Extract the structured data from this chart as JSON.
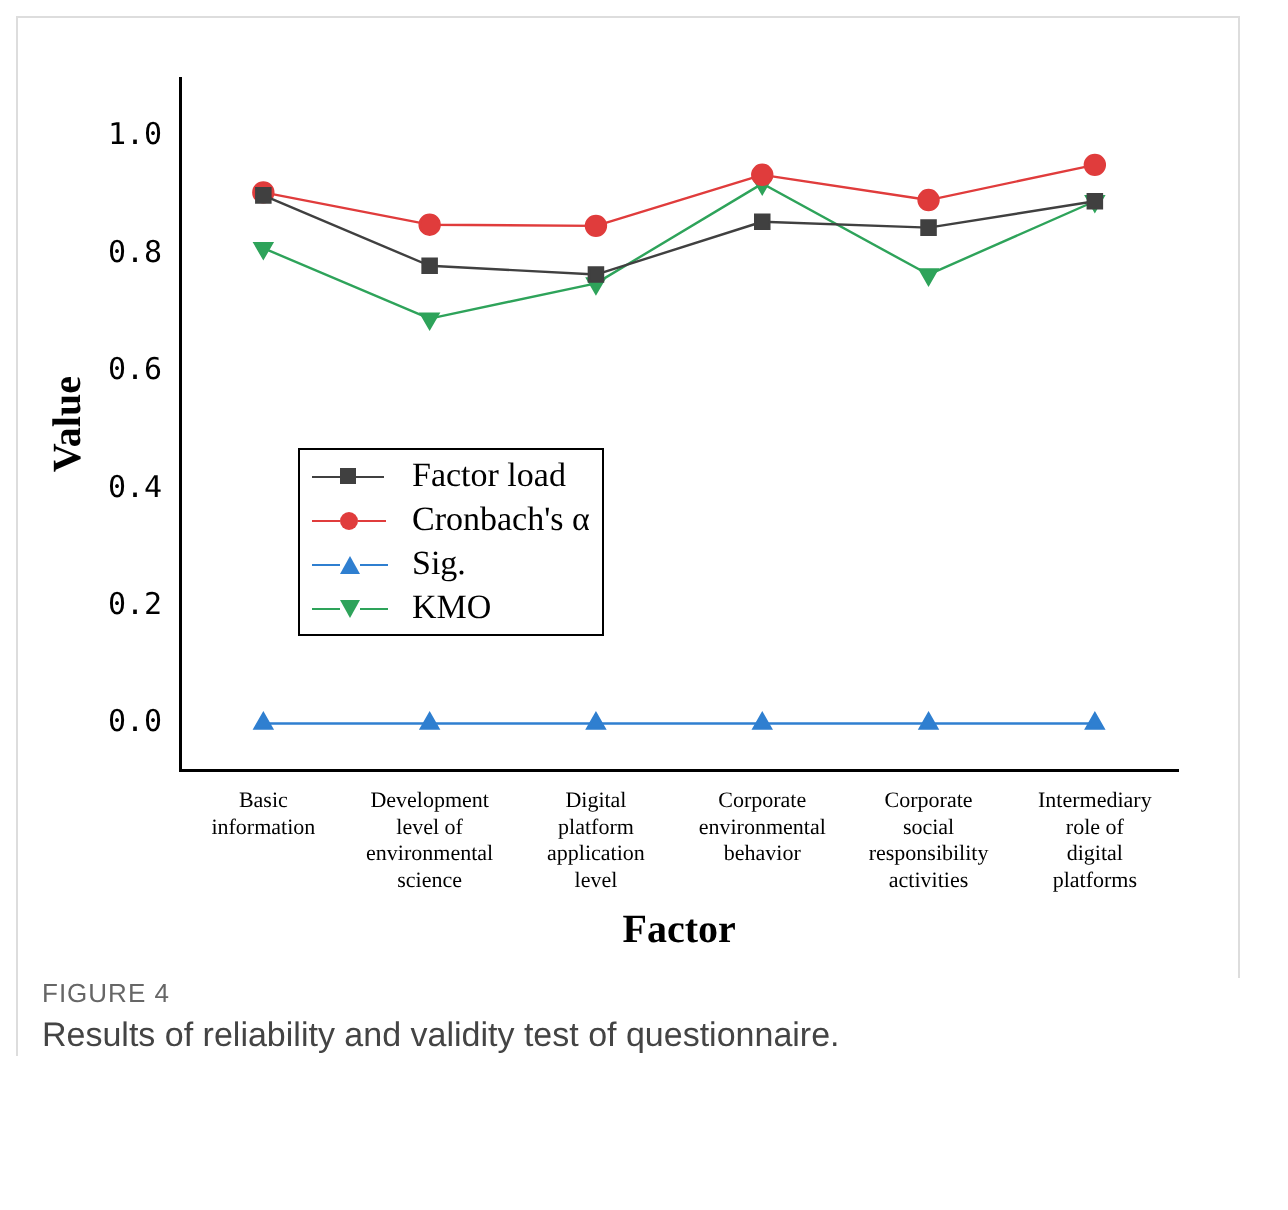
{
  "chart_data": {
    "type": "line",
    "title": "FIGURE 4",
    "subtitle": "Results of reliability and validity test of questionnaire.",
    "xlabel": "Factor",
    "ylabel": "Value",
    "categories": [
      "Basic information",
      "Development level of environmental science",
      "Digital platform application level",
      "Corporate environmental behavior",
      "Corporate social responsibility activities",
      "Intermediary role of digital platforms"
    ],
    "series": [
      {
        "name": "Factor load",
        "color": "#404040",
        "marker": "square",
        "values": [
          0.9,
          0.78,
          0.765,
          0.855,
          0.845,
          0.89
        ]
      },
      {
        "name": "Cronbach's α",
        "color": "#e03c3c",
        "marker": "circle",
        "values": [
          0.905,
          0.85,
          0.848,
          0.935,
          0.892,
          0.952
        ]
      },
      {
        "name": "Sig.",
        "color": "#2f7fd0",
        "marker": "triangle",
        "values": [
          0,
          0,
          0,
          0,
          0,
          0
        ]
      },
      {
        "name": "KMO",
        "color": "#2ea35a",
        "marker": "triangle-down",
        "values": [
          0.81,
          0.69,
          0.75,
          0.92,
          0.765,
          0.89
        ]
      }
    ],
    "ylim": [
      -0.08,
      1.1
    ],
    "yticks": [
      {
        "value": 0,
        "label": "0.0"
      },
      0.2,
      0.4,
      0.6,
      0.8,
      {
        "value": 1,
        "label": "1.0"
      }
    ],
    "grid": false,
    "legend": "left"
  }
}
